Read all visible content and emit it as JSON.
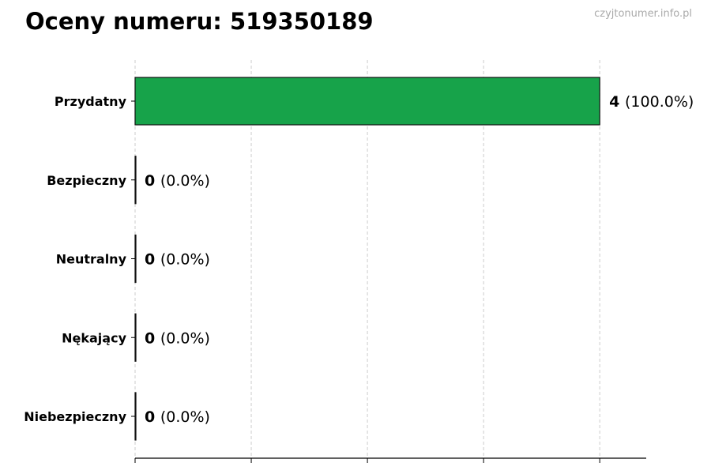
{
  "title": "Oceny numeru: 519350189",
  "watermark": "czyjtonumer.info.pl",
  "chart_data": {
    "type": "bar",
    "orientation": "horizontal",
    "title": "Oceny numeru: 519350189",
    "categories": [
      "Przydatny",
      "Bezpieczny",
      "Neutralny",
      "Nękający",
      "Niebezpieczny"
    ],
    "values": [
      4,
      0,
      0,
      0,
      0
    ],
    "percent_labels": [
      "(100.0%)",
      "(0.0%)",
      "(0.0%)",
      "(0.0%)",
      "(0.0%)"
    ],
    "xlim": [
      0,
      4.4
    ],
    "xticks": [
      0,
      1,
      2,
      3,
      4
    ],
    "xtick_labels_shown": false,
    "grid": "vertical dashed",
    "bar_color": "#17a34a",
    "xlabel": "",
    "ylabel": ""
  }
}
